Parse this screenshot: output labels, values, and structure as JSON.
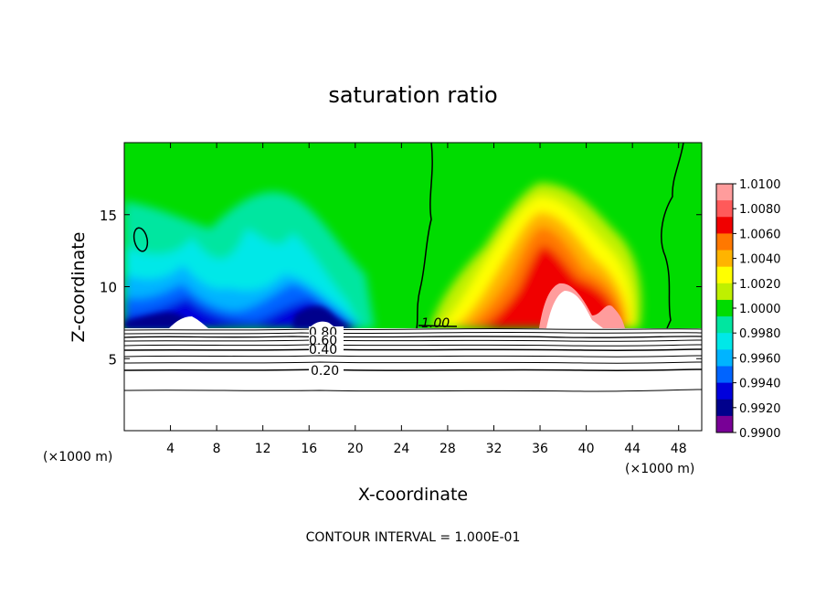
{
  "chart_data": {
    "type": "heatmap",
    "title": "saturation ratio",
    "xlabel": "X-coordinate",
    "ylabel": "Z-coordinate",
    "x_unit_left": "(×1000 m)",
    "x_unit_right": "(×1000 m)",
    "footer": "CONTOUR INTERVAL = 1.000E-01",
    "xlim": [
      0,
      50
    ],
    "ylim": [
      0,
      20
    ],
    "x_ticks": [
      4,
      8,
      12,
      16,
      20,
      24,
      28,
      32,
      36,
      40,
      44,
      48
    ],
    "y_ticks": [
      5,
      10,
      15
    ],
    "colorbar": {
      "labels": [
        "1.0100",
        "1.0080",
        "1.0060",
        "1.0040",
        "1.0020",
        "1.0000",
        "0.9980",
        "0.9960",
        "0.9940",
        "0.9920",
        "0.9900"
      ],
      "values": [
        1.01,
        1.008,
        1.006,
        1.004,
        1.002,
        1.0,
        0.998,
        0.996,
        0.994,
        0.992,
        0.99
      ],
      "colors": [
        "#ff9c9c",
        "#ff5a5a",
        "#f00000",
        "#ff7800",
        "#ffb400",
        "#ffff00",
        "#bff000",
        "#00dc00",
        "#00e6a0",
        "#00e8e8",
        "#00b4ff",
        "#0064ff",
        "#0000dc",
        "#00008c",
        "#780096"
      ]
    },
    "contour_labels": [
      "0.80",
      "0.60",
      "0.40",
      "0.20",
      "1.00"
    ],
    "contour_levels": [
      0.2,
      0.4,
      0.6,
      0.8,
      1.0
    ]
  }
}
